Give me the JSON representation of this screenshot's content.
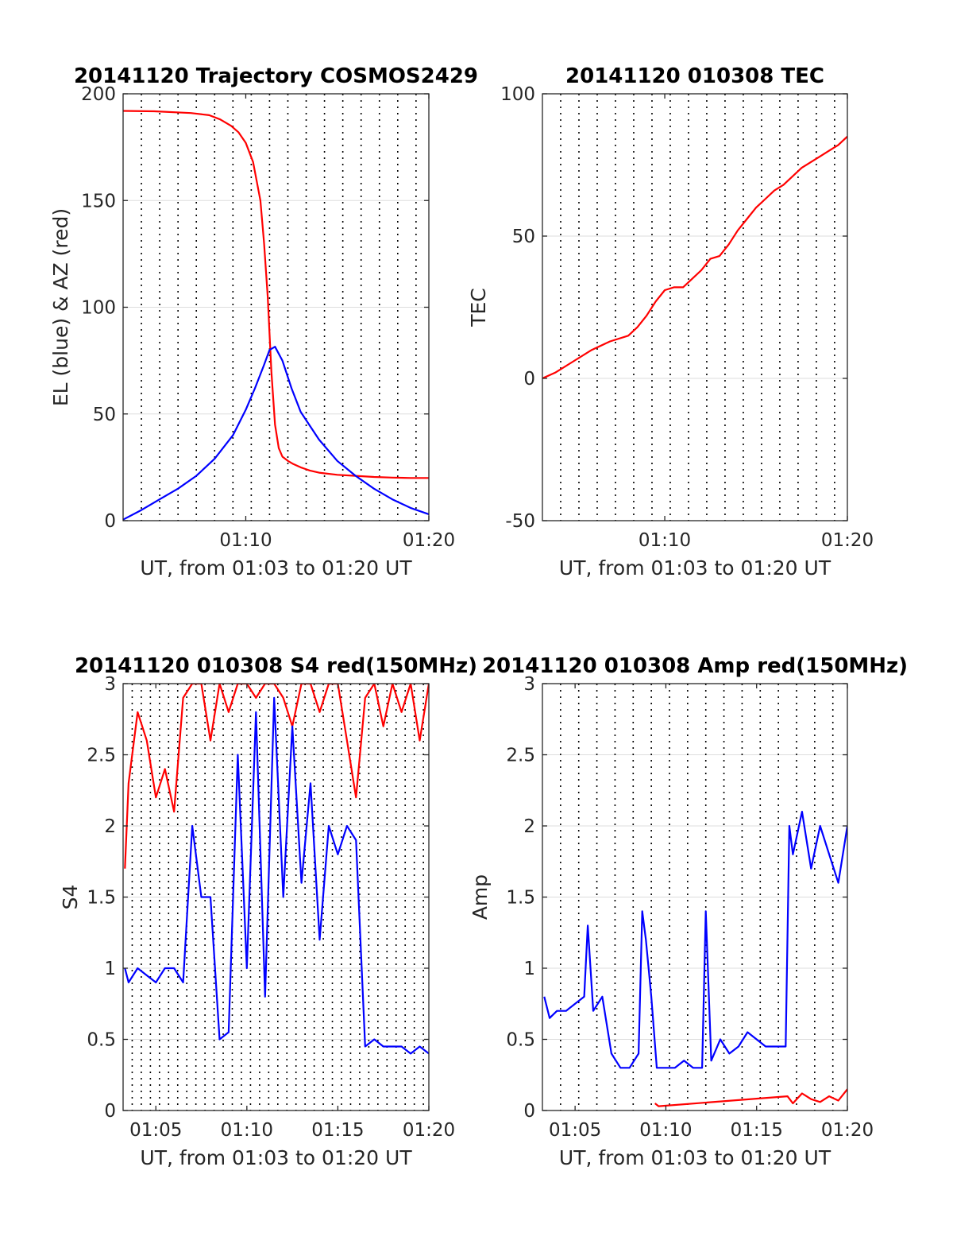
{
  "figure": {
    "background": "#ffffff",
    "grid_color": "#dddddd",
    "axis_color": "#262626"
  },
  "chart_data": [
    {
      "type": "line",
      "title": "20141120 Trajectory COSMOS2429",
      "xlabel": "UT, from 01:03 to 01:20 UT",
      "ylabel": "EL (blue) & AZ (red)",
      "xlim": [
        3.3,
        20.0
      ],
      "ylim": [
        0,
        200
      ],
      "x_unit": "minutes after 01:00 UT",
      "xticks": [
        10,
        20
      ],
      "xtick_labels": [
        "01:10",
        "01:20"
      ],
      "yticks": [
        0,
        50,
        100,
        150,
        200
      ],
      "ytick_labels": [
        "0",
        "50",
        "100",
        "150",
        "200"
      ],
      "vertical_dotted_lines": [
        4.3,
        5.3,
        6.3,
        7.3,
        8.3,
        9.3,
        10.3,
        11.3,
        12.3,
        13.3,
        14.3,
        15.3,
        16.3,
        17.3,
        18.3,
        19.3
      ],
      "grid": "horizontal",
      "series": [
        {
          "color": "#ff0000",
          "x": [
            3.3,
            5.0,
            7.0,
            8.0,
            8.6,
            9.2,
            9.6,
            10.0,
            10.4,
            10.8,
            11.0,
            11.2,
            11.4,
            11.6,
            11.8,
            12.0,
            12.3,
            12.6,
            13.0,
            13.5,
            14.0,
            15.0,
            16.0,
            17.0,
            18.0,
            19.0,
            20.0
          ],
          "values": [
            192,
            191.8,
            191,
            190,
            188,
            185,
            182,
            177,
            168,
            150,
            130,
            105,
            70,
            45,
            34,
            30,
            28,
            26.5,
            25,
            23.5,
            22.5,
            21.5,
            21,
            20.5,
            20.2,
            20,
            20
          ]
        },
        {
          "color": "#0000ff",
          "x": [
            3.3,
            4.3,
            5.3,
            6.3,
            7.3,
            8.3,
            9.3,
            10.0,
            10.5,
            11.0,
            11.3,
            11.6,
            12.0,
            12.5,
            13.0,
            14.0,
            15.0,
            16.0,
            17.0,
            18.0,
            19.0,
            20.0
          ],
          "values": [
            0.5,
            5,
            10,
            15,
            21,
            29,
            40,
            52,
            62,
            73,
            80,
            81.5,
            75,
            62,
            51,
            38,
            28,
            21,
            15,
            10,
            6,
            3
          ]
        }
      ]
    },
    {
      "type": "line",
      "title": "20141120 010308 TEC",
      "xlabel": "UT, from 01:03 to 01:20 UT",
      "ylabel": "TEC",
      "xlim": [
        3.3,
        20.0
      ],
      "ylim": [
        -50,
        100
      ],
      "x_unit": "minutes after 01:00 UT",
      "xticks": [
        10,
        20
      ],
      "xtick_labels": [
        "01:10",
        "01:20"
      ],
      "yticks": [
        -50,
        0,
        50,
        100
      ],
      "ytick_labels": [
        "-50",
        "0",
        "50",
        "100"
      ],
      "vertical_dotted_lines": [
        4.3,
        5.3,
        6.3,
        7.3,
        8.3,
        9.3,
        10.3,
        11.3,
        12.3,
        13.3,
        14.3,
        15.3,
        16.3,
        17.3,
        18.3,
        19.3
      ],
      "grid": "horizontal",
      "series": [
        {
          "color": "#ff0000",
          "x": [
            3.3,
            4.0,
            5.0,
            6.0,
            7.0,
            8.0,
            8.5,
            9.0,
            9.5,
            10.0,
            10.5,
            11.0,
            11.5,
            12.0,
            12.5,
            13.0,
            13.5,
            14.0,
            14.5,
            15.0,
            15.5,
            16.0,
            16.5,
            17.0,
            17.5,
            18.0,
            18.5,
            19.0,
            19.5,
            20.0
          ],
          "values": [
            0,
            2,
            6,
            10,
            13,
            15,
            18,
            22,
            27,
            31,
            32,
            32,
            35,
            38,
            42,
            43,
            47,
            52,
            56,
            60,
            63,
            66,
            68,
            71,
            74,
            76,
            78,
            80,
            82,
            85
          ]
        }
      ]
    },
    {
      "type": "line",
      "title": "20141120 010308 S4 red(150MHz)",
      "xlabel": "UT, from 01:03 to 01:20 UT",
      "ylabel": "S4",
      "xlim": [
        3.2,
        20.0
      ],
      "ylim": [
        0,
        3
      ],
      "x_unit": "minutes after 01:00 UT",
      "xticks": [
        5,
        10,
        15,
        20
      ],
      "xtick_labels": [
        "01:05",
        "01:10",
        "01:15",
        "01:20"
      ],
      "yticks": [
        0,
        0.5,
        1,
        1.5,
        2,
        2.5,
        3
      ],
      "ytick_labels": [
        "0",
        "0.5",
        "1",
        "1.5",
        "2",
        "2.5",
        "3"
      ],
      "vertical_dotted_lines": [
        3.7,
        4.2,
        4.7,
        5.2,
        5.7,
        6.2,
        6.7,
        7.2,
        7.7,
        8.2,
        8.7,
        9.2,
        9.7,
        10.2,
        10.7,
        11.2,
        11.7,
        12.2,
        12.7,
        13.2,
        13.7,
        14.2,
        14.7,
        15.2,
        15.7,
        16.2,
        16.7,
        17.2,
        17.7,
        18.2,
        18.7,
        19.2,
        19.7
      ],
      "grid": "horizontal",
      "series": [
        {
          "color": "#ff0000",
          "x": [
            3.3,
            3.5,
            4.0,
            4.5,
            5.0,
            5.5,
            6.0,
            6.5,
            7.0,
            7.5,
            8.0,
            8.5,
            9.0,
            9.5,
            10.0,
            10.5,
            11.0,
            11.5,
            12.0,
            12.5,
            13.0,
            13.5,
            14.0,
            14.5,
            15.0,
            15.5,
            16.0,
            16.5,
            17.0,
            17.5,
            18.0,
            18.5,
            19.0,
            19.5,
            20.0
          ],
          "values": [
            1.7,
            2.3,
            2.8,
            2.6,
            2.2,
            2.4,
            2.1,
            2.9,
            3.0,
            3.0,
            2.6,
            3.0,
            2.8,
            3.0,
            3.0,
            2.9,
            3.0,
            3.0,
            2.9,
            2.7,
            3.0,
            3.0,
            2.8,
            3.0,
            3.0,
            2.6,
            2.2,
            2.9,
            3.0,
            2.7,
            3.0,
            2.8,
            3.0,
            2.6,
            3.0
          ]
        },
        {
          "color": "#0000ff",
          "x": [
            3.3,
            3.5,
            4.0,
            4.5,
            5.0,
            5.5,
            6.0,
            6.5,
            7.0,
            7.5,
            8.0,
            8.5,
            9.0,
            9.5,
            10.0,
            10.5,
            11.0,
            11.5,
            12.0,
            12.5,
            13.0,
            13.5,
            14.0,
            14.5,
            15.0,
            15.5,
            16.0,
            16.5,
            17.0,
            17.5,
            18.0,
            18.5,
            19.0,
            19.5,
            20.0
          ],
          "values": [
            1.0,
            0.9,
            1.0,
            0.95,
            0.9,
            1.0,
            1.0,
            0.9,
            2.0,
            1.5,
            1.5,
            0.5,
            0.55,
            2.5,
            1.0,
            2.8,
            0.8,
            2.9,
            1.5,
            2.7,
            1.6,
            2.3,
            1.2,
            2.0,
            1.8,
            2.0,
            1.9,
            0.45,
            0.5,
            0.45,
            0.45,
            0.45,
            0.4,
            0.45,
            0.4
          ]
        }
      ]
    },
    {
      "type": "line",
      "title": "20141120 010308 Amp red(150MHz)",
      "xlabel": "UT, from 01:03 to 01:20 UT",
      "ylabel": "Amp",
      "xlim": [
        3.2,
        20.0
      ],
      "ylim": [
        0,
        3
      ],
      "x_unit": "minutes after 01:00 UT",
      "xticks": [
        5,
        10,
        15,
        20
      ],
      "xtick_labels": [
        "01:05",
        "01:10",
        "01:15",
        "01:20"
      ],
      "yticks": [
        0,
        0.5,
        1,
        1.5,
        2,
        2.5,
        3
      ],
      "ytick_labels": [
        "0",
        "0.5",
        "1",
        "1.5",
        "2",
        "2.5",
        "3"
      ],
      "vertical_dotted_lines": [
        4.2,
        5.2,
        6.2,
        7.2,
        8.2,
        9.2,
        10.2,
        11.2,
        12.2,
        13.2,
        14.2,
        15.2,
        16.2,
        17.2,
        18.2,
        19.2
      ],
      "grid": "horizontal",
      "series": [
        {
          "color": "#0000ff",
          "x": [
            3.3,
            3.6,
            4.0,
            4.5,
            5.0,
            5.5,
            5.7,
            6.0,
            6.5,
            7.0,
            7.5,
            8.0,
            8.5,
            8.7,
            8.9,
            9.2,
            9.5,
            10.0,
            10.5,
            11.0,
            11.5,
            12.0,
            12.2,
            12.5,
            13.0,
            13.5,
            14.0,
            14.5,
            15.0,
            15.5,
            16.0,
            16.3,
            16.6,
            16.8,
            17.0,
            17.5,
            18.0,
            18.5,
            19.0,
            19.5,
            20.0
          ],
          "values": [
            0.8,
            0.65,
            0.7,
            0.7,
            0.75,
            0.8,
            1.3,
            0.7,
            0.8,
            0.4,
            0.3,
            0.3,
            0.4,
            1.4,
            1.2,
            0.8,
            0.3,
            0.3,
            0.3,
            0.35,
            0.3,
            0.3,
            1.4,
            0.35,
            0.5,
            0.4,
            0.45,
            0.55,
            0.5,
            0.45,
            0.45,
            0.45,
            0.45,
            2.0,
            1.8,
            2.1,
            1.7,
            2.0,
            1.8,
            1.6,
            2.0
          ]
        },
        {
          "color": "#ff0000",
          "x": [
            9.4,
            9.6,
            16.7,
            17.0,
            17.5,
            18.0,
            18.5,
            19.0,
            19.5,
            20.0
          ],
          "values": [
            0.05,
            0.03,
            0.1,
            0.05,
            0.12,
            0.08,
            0.06,
            0.1,
            0.07,
            0.15
          ]
        }
      ]
    }
  ]
}
